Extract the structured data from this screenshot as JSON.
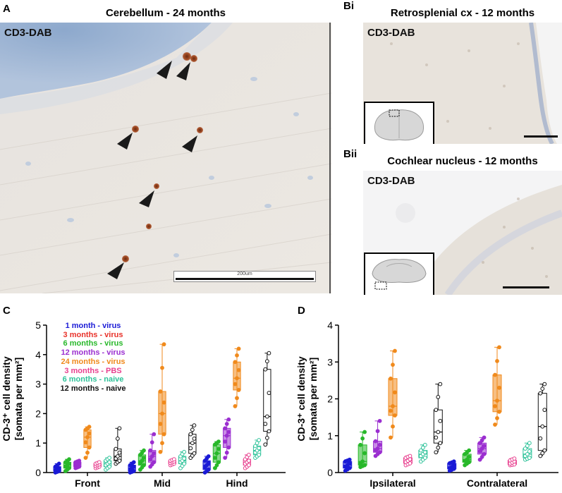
{
  "panels": {
    "A": {
      "letter": "A",
      "title": "Cerebellum - 24 months",
      "stain": "CD3-DAB",
      "scalebar": "200um"
    },
    "Bi": {
      "letter": "Bi",
      "title": "Retrosplenial cx - 12 months",
      "stain": "CD3-DAB"
    },
    "Bii": {
      "letter": "Bii",
      "title": "Cochlear nucleus - 12 months",
      "stain": "CD3-DAB"
    },
    "C": {
      "letter": "C"
    },
    "D": {
      "letter": "D"
    }
  },
  "colors": {
    "1 month - virus": "#1a1ad6",
    "3 months - virus": "#e8322a",
    "6 months - virus": "#28b82a",
    "12 months - virus": "#9b2fd0",
    "24 months - virus": "#f08a1c",
    "3 months - PBS": "#e8408f",
    "6 months - naive": "#2fc39a",
    "12 months - naive": "#111111"
  },
  "legend": [
    "1 month - virus",
    "3 months - virus",
    "6 months - virus",
    "12 months - virus",
    "24 months - virus",
    "3 months - PBS",
    "6 months - naive",
    "12 months - naive"
  ],
  "chart_data": [
    {
      "type": "box",
      "panel": "C",
      "ylabel_line1": "CD-3⁺ cell density",
      "ylabel_line2": "[somata per mm²]",
      "ylim": [
        0,
        5
      ],
      "yticks": [
        0,
        1,
        2,
        3,
        4,
        5
      ],
      "categories": [
        "Front",
        "Mid",
        "Hind"
      ],
      "series": [
        {
          "name": "1 month - virus",
          "boxes": [
            {
              "min": 0,
              "q1": 0.05,
              "median": 0.1,
              "q3": 0.2,
              "max": 0.3
            },
            {
              "min": 0,
              "q1": 0.05,
              "median": 0.15,
              "q3": 0.25,
              "max": 0.35
            },
            {
              "min": 0,
              "q1": 0.1,
              "median": 0.25,
              "q3": 0.4,
              "max": 0.55
            }
          ]
        },
        {
          "name": "6 months - virus",
          "boxes": [
            {
              "min": 0.05,
              "q1": 0.15,
              "median": 0.25,
              "q3": 0.35,
              "max": 0.45
            },
            {
              "min": 0.1,
              "q1": 0.25,
              "median": 0.4,
              "q3": 0.6,
              "max": 0.75
            },
            {
              "min": 0.15,
              "q1": 0.35,
              "median": 0.65,
              "q3": 0.95,
              "max": 1.05
            }
          ]
        },
        {
          "name": "12 months - virus",
          "boxes": [
            {
              "min": 0.15,
              "q1": 0.2,
              "median": 0.28,
              "q3": 0.35,
              "max": 0.4
            },
            {
              "min": 0.2,
              "q1": 0.35,
              "median": 0.55,
              "q3": 0.75,
              "max": 1.3
            },
            {
              "min": 0.5,
              "q1": 0.85,
              "median": 1.25,
              "q3": 1.5,
              "max": 1.8
            }
          ]
        },
        {
          "name": "24 months - virus",
          "boxes": [
            {
              "min": 0.5,
              "q1": 0.85,
              "median": 1.2,
              "q3": 1.45,
              "max": 1.55
            },
            {
              "min": 0.7,
              "q1": 1.3,
              "median": 2.0,
              "q3": 2.75,
              "max": 4.35
            },
            {
              "min": 2.25,
              "q1": 2.8,
              "median": 3.2,
              "q3": 3.75,
              "max": 4.2
            }
          ]
        },
        {
          "name": "3 months - PBS",
          "boxes": [
            {
              "min": 0.15,
              "q1": 0.2,
              "median": 0.25,
              "q3": 0.3,
              "max": 0.35
            },
            {
              "min": 0.25,
              "q1": 0.3,
              "median": 0.35,
              "q3": 0.4,
              "max": 0.45
            },
            {
              "min": 0.15,
              "q1": 0.25,
              "median": 0.35,
              "q3": 0.45,
              "max": 0.6
            }
          ]
        },
        {
          "name": "6 months - naive",
          "boxes": [
            {
              "min": 0.1,
              "q1": 0.2,
              "median": 0.3,
              "q3": 0.4,
              "max": 0.5
            },
            {
              "min": 0.15,
              "q1": 0.3,
              "median": 0.4,
              "q3": 0.55,
              "max": 0.7
            },
            {
              "min": 0.5,
              "q1": 0.6,
              "median": 0.75,
              "q3": 0.9,
              "max": 1.1
            }
          ]
        },
        {
          "name": "12 months - naive",
          "boxes": [
            {
              "min": 0.3,
              "q1": 0.4,
              "median": 0.55,
              "q3": 0.8,
              "max": 1.5
            },
            {
              "min": 0.5,
              "q1": 0.65,
              "median": 1.0,
              "q3": 1.3,
              "max": 1.6
            },
            {
              "min": 0.95,
              "q1": 1.4,
              "median": 1.9,
              "q3": 3.5,
              "max": 4.05
            }
          ]
        }
      ]
    },
    {
      "type": "box",
      "panel": "D",
      "ylabel_line1": "CD-3⁺ cell density",
      "ylabel_line2": "[somata per mm²]",
      "ylim": [
        0,
        4
      ],
      "yticks": [
        0,
        1,
        2,
        3,
        4
      ],
      "categories": [
        "Ipsilateral",
        "Contralateral"
      ],
      "series": [
        {
          "name": "1 month - virus",
          "boxes": [
            {
              "min": 0.05,
              "q1": 0.12,
              "median": 0.2,
              "q3": 0.3,
              "max": 0.35
            },
            {
              "min": 0.05,
              "q1": 0.1,
              "median": 0.15,
              "q3": 0.25,
              "max": 0.3
            }
          ]
        },
        {
          "name": "6 months - virus",
          "boxes": [
            {
              "min": 0.15,
              "q1": 0.2,
              "median": 0.3,
              "q3": 0.75,
              "max": 1.1
            },
            {
              "min": 0.2,
              "q1": 0.28,
              "median": 0.35,
              "q3": 0.5,
              "max": 0.6
            }
          ]
        },
        {
          "name": "12 months - virus",
          "boxes": [
            {
              "min": 0.45,
              "q1": 0.55,
              "median": 0.65,
              "q3": 0.85,
              "max": 1.4
            },
            {
              "min": 0.35,
              "q1": 0.5,
              "median": 0.65,
              "q3": 0.8,
              "max": 0.95
            }
          ]
        },
        {
          "name": "24 months - virus",
          "boxes": [
            {
              "min": 0.95,
              "q1": 1.55,
              "median": 1.8,
              "q3": 2.55,
              "max": 3.3
            },
            {
              "min": 1.3,
              "q1": 1.65,
              "median": 1.95,
              "q3": 2.65,
              "max": 3.4
            }
          ]
        },
        {
          "name": "3 months - PBS",
          "boxes": [
            {
              "min": 0.2,
              "q1": 0.25,
              "median": 0.32,
              "q3": 0.4,
              "max": 0.45
            },
            {
              "min": 0.2,
              "q1": 0.22,
              "median": 0.27,
              "q3": 0.33,
              "max": 0.38
            }
          ]
        },
        {
          "name": "6 months - naive",
          "boxes": [
            {
              "min": 0.3,
              "q1": 0.4,
              "median": 0.5,
              "q3": 0.6,
              "max": 0.75
            },
            {
              "min": 0.35,
              "q1": 0.4,
              "median": 0.5,
              "q3": 0.65,
              "max": 0.8
            }
          ]
        },
        {
          "name": "12 months - naive",
          "boxes": [
            {
              "min": 0.55,
              "q1": 0.8,
              "median": 1.1,
              "q3": 1.7,
              "max": 2.4
            },
            {
              "min": 0.45,
              "q1": 0.6,
              "median": 1.25,
              "q3": 2.15,
              "max": 2.4
            }
          ]
        }
      ]
    }
  ]
}
